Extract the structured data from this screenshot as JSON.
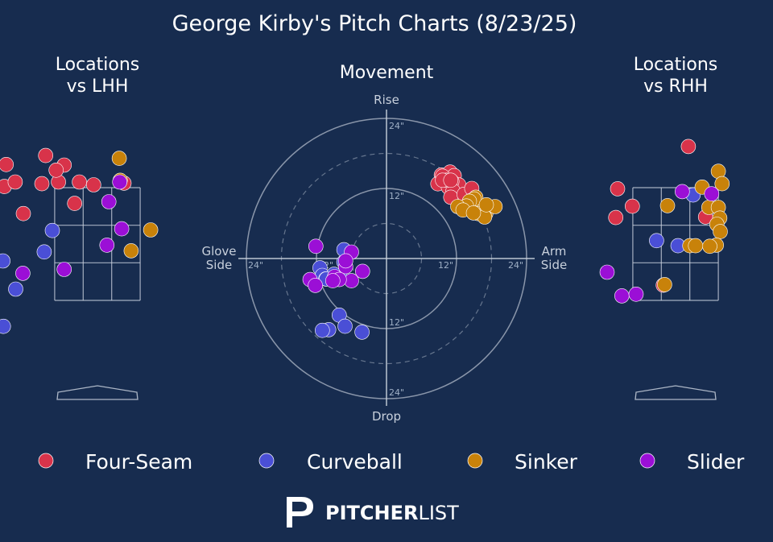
{
  "title": "George Kirby's Pitch Charts (8/23/25)",
  "colors": {
    "background": "#172c4f",
    "grid": "#c8d0dc",
    "text": "#ffffff",
    "muted_text": "#c8d0dc"
  },
  "panels": {
    "lhh": {
      "title_line1": "Locations",
      "title_line2": "vs LHH"
    },
    "movement": {
      "title": "Movement",
      "top_label": "Rise",
      "bottom_label": "Drop",
      "left_label_line1": "Glove",
      "left_label_line2": "Side",
      "right_label_line1": "Arm",
      "right_label_line2": "Side",
      "ring_labels": {
        "inner": "12\"",
        "outer": "24\""
      }
    },
    "rhh": {
      "title_line1": "Locations",
      "title_line2": "vs RHH"
    }
  },
  "legend": [
    {
      "name": "Four-Seam",
      "color": "#d8334a"
    },
    {
      "name": "Curveball",
      "color": "#4a4fd6"
    },
    {
      "name": "Sinker",
      "color": "#c8820a"
    },
    {
      "name": "Slider",
      "color": "#9b0fd6"
    }
  ],
  "brand": {
    "bold": "PITCHER",
    "light": "LIST"
  },
  "chart_data": [
    {
      "type": "scatter",
      "panel": "Locations vs LHH",
      "series": [
        {
          "name": "Four-Seam",
          "points": [
            [
              -1.92,
              3.91
            ],
            [
              -1.09,
              4.07
            ],
            [
              -0.7,
              3.9
            ],
            [
              -1.96,
              3.52
            ],
            [
              -1.17,
              3.57
            ],
            [
              -0.82,
              3.6
            ],
            [
              -0.38,
              3.6
            ],
            [
              -0.08,
              3.55
            ],
            [
              0.56,
              3.58
            ],
            [
              -0.87,
              3.81
            ],
            [
              -1.73,
              3.6
            ],
            [
              -0.48,
              3.22
            ],
            [
              -1.56,
              3.04
            ]
          ]
        },
        {
          "name": "Curveball",
          "points": [
            [
              -0.95,
              2.74
            ],
            [
              -1.12,
              2.36
            ],
            [
              -1.99,
              2.2
            ],
            [
              -1.72,
              1.7
            ],
            [
              -1.98,
              1.04
            ]
          ]
        },
        {
          "name": "Sinker",
          "points": [
            [
              0.46,
              4.02
            ],
            [
              0.48,
              3.63
            ],
            [
              0.71,
              2.38
            ],
            [
              1.12,
              2.75
            ]
          ]
        },
        {
          "name": "Slider",
          "points": [
            [
              0.24,
              3.25
            ],
            [
              0.47,
              3.6
            ],
            [
              0.51,
              2.77
            ],
            [
              0.2,
              2.48
            ],
            [
              -1.57,
              1.98
            ],
            [
              -0.7,
              2.05
            ]
          ]
        }
      ]
    },
    {
      "type": "polar_scatter",
      "panel": "Movement",
      "units": "inches",
      "x_meaning": "horizontal break (negative = glove side, positive = arm side)",
      "y_meaning": "induced vertical break (positive = rise, negative = drop)",
      "ring_radii": [
        6,
        12,
        18,
        24
      ],
      "series": [
        {
          "name": "Four-Seam",
          "points": [
            [
              9.4,
              14.3
            ],
            [
              10.9,
              14.8
            ],
            [
              11.6,
              14.2
            ],
            [
              12.4,
              12.6
            ],
            [
              11.2,
              13.2
            ],
            [
              9.9,
              13.0
            ],
            [
              8.8,
              12.8
            ],
            [
              10.6,
              12.2
            ],
            [
              11.4,
              11.6
            ],
            [
              12.9,
              10.0
            ],
            [
              11.0,
              10.5
            ],
            [
              13.3,
              11.0
            ],
            [
              9.6,
              14.1
            ],
            [
              10.3,
              13.4
            ],
            [
              9.6,
              13.4
            ],
            [
              11.0,
              13.4
            ],
            [
              14.6,
              12.0
            ],
            [
              14.6,
              10.0
            ]
          ]
        },
        {
          "name": "Curveball",
          "points": [
            [
              -11.4,
              -1.6
            ],
            [
              -11.0,
              -2.9
            ],
            [
              -10.4,
              -3.5
            ],
            [
              -7.3,
              1.5
            ],
            [
              -7.3,
              -0.6
            ],
            [
              -8.0,
              -2.9
            ],
            [
              -9.0,
              -2.7
            ],
            [
              -10.3,
              -3.5
            ],
            [
              -8.1,
              -9.7
            ],
            [
              -9.9,
              -12.2
            ],
            [
              -11.0,
              -12.3
            ],
            [
              -7.1,
              -11.6
            ],
            [
              -4.2,
              -12.6
            ]
          ]
        },
        {
          "name": "Sinker",
          "points": [
            [
              16.3,
              9.1
            ],
            [
              15.3,
              10.5
            ],
            [
              15.0,
              10.2
            ],
            [
              14.2,
              9.8
            ],
            [
              13.7,
              9.0
            ],
            [
              12.2,
              8.9
            ],
            [
              13.1,
              8.3
            ],
            [
              15.7,
              7.7
            ],
            [
              17.0,
              7.7
            ],
            [
              18.6,
              8.9
            ],
            [
              16.8,
              7.1
            ],
            [
              17.1,
              9.2
            ],
            [
              14.9,
              7.8
            ]
          ]
        },
        {
          "name": "Slider",
          "points": [
            [
              -12.1,
              2.1
            ],
            [
              -6.0,
              1.1
            ],
            [
              -13.1,
              -3.6
            ],
            [
              -12.2,
              -4.6
            ],
            [
              -7.0,
              -1.4
            ],
            [
              -4.1,
              -2.2
            ],
            [
              -6.0,
              -3.8
            ],
            [
              -8.9,
              -3.1
            ],
            [
              -8.1,
              -3.6
            ],
            [
              -9.2,
              -3.8
            ],
            [
              -7.0,
              -0.4
            ]
          ]
        }
      ]
    },
    {
      "type": "scatter",
      "panel": "Locations vs RHH",
      "series": [
        {
          "name": "Four-Seam",
          "points": [
            [
              0.27,
              4.23
            ],
            [
              2.03,
              4.17
            ],
            [
              -1.22,
              3.48
            ],
            [
              -0.91,
              3.17
            ],
            [
              -1.26,
              2.97
            ],
            [
              0.63,
              2.98
            ],
            [
              2.06,
              2.34
            ],
            [
              -0.26,
              1.77
            ]
          ]
        },
        {
          "name": "Curveball",
          "points": [
            [
              0.37,
              3.37
            ],
            [
              -0.4,
              2.56
            ],
            [
              0.05,
              2.47
            ]
          ]
        },
        {
          "name": "Sinker",
          "points": [
            [
              0.9,
              3.79
            ],
            [
              2.02,
              4.33
            ],
            [
              0.98,
              3.57
            ],
            [
              2.05,
              3.59
            ],
            [
              0.56,
              3.51
            ],
            [
              -0.17,
              3.18
            ],
            [
              0.7,
              3.15
            ],
            [
              0.9,
              3.15
            ],
            [
              0.93,
              2.96
            ],
            [
              0.87,
              2.85
            ],
            [
              0.94,
              2.72
            ],
            [
              0.3,
              2.47
            ],
            [
              0.86,
              2.48
            ],
            [
              0.72,
              2.46
            ],
            [
              0.42,
              2.47
            ],
            [
              -0.23,
              1.78
            ]
          ]
        },
        {
          "name": "Slider",
          "points": [
            [
              0.14,
              3.43
            ],
            [
              0.76,
              3.39
            ],
            [
              -1.44,
              2.0
            ],
            [
              -1.13,
              1.58
            ],
            [
              -0.83,
              1.61
            ]
          ]
        }
      ]
    }
  ]
}
